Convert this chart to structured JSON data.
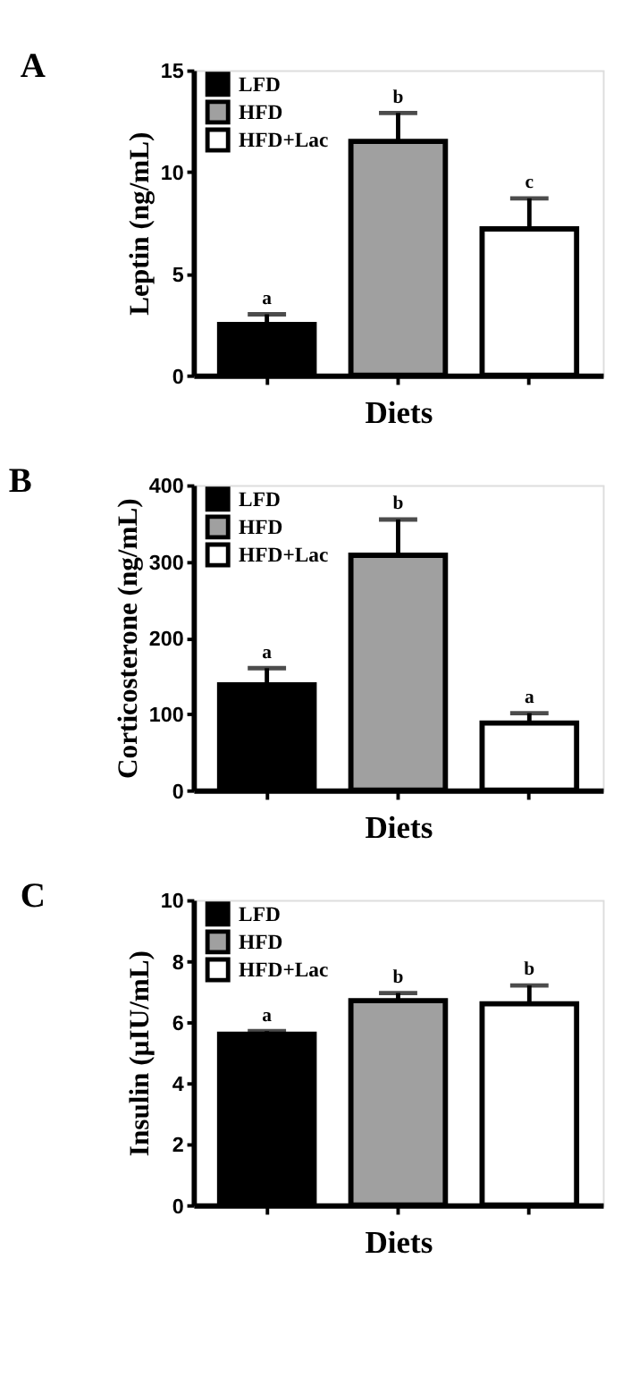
{
  "chart_data": [
    {
      "type": "bar",
      "title": "A",
      "xlabel": "Diets",
      "ylabel": "Leptin (ng/mL)",
      "categories": [
        null,
        null,
        null
      ],
      "ylim": [
        0,
        15
      ],
      "yticks": [
        0,
        5,
        10,
        15
      ],
      "legend": "top left",
      "series": [
        {
          "name": "LFD",
          "color": "#000000",
          "values": [
            2.5,
            null,
            null
          ],
          "errors": [
            [
              2.5,
              3.0
            ],
            null,
            null
          ],
          "value_labels": [
            "a",
            null,
            null
          ]
        },
        {
          "name": "HFD",
          "color": "#a0a0a0",
          "values": [
            null,
            11.5,
            null
          ],
          "errors": [
            null,
            [
              11.5,
              12.9
            ],
            null
          ],
          "value_labels": [
            null,
            "b",
            null
          ]
        },
        {
          "name": "HFD+Lac",
          "color": "#ffffff",
          "values": [
            null,
            null,
            7.2
          ],
          "errors": [
            null,
            null,
            [
              7.2,
              8.7
            ]
          ],
          "value_labels": [
            null,
            null,
            "c"
          ]
        }
      ]
    },
    {
      "type": "bar",
      "title": "B",
      "xlabel": "Diets",
      "ylabel": "Corticosterone (ng/mL)",
      "categories": [
        null,
        null,
        null
      ],
      "ylim": [
        0,
        400
      ],
      "yticks": [
        0,
        100,
        200,
        300,
        400
      ],
      "legend": "top left",
      "series": [
        {
          "name": "LFD",
          "color": "#000000",
          "values": [
            138,
            null,
            null
          ],
          "errors": [
            [
              138,
              160
            ],
            null,
            null
          ],
          "value_labels": [
            "a",
            null,
            null
          ]
        },
        {
          "name": "HFD",
          "color": "#a0a0a0",
          "values": [
            null,
            308,
            null
          ],
          "errors": [
            null,
            [
              308,
              355
            ],
            null
          ],
          "value_labels": [
            null,
            "b",
            null
          ]
        },
        {
          "name": "HFD+Lac",
          "color": "#ffffff",
          "values": [
            null,
            null,
            88
          ],
          "errors": [
            null,
            null,
            [
              88,
              101
            ]
          ],
          "value_labels": [
            null,
            null,
            "a"
          ]
        }
      ]
    },
    {
      "type": "bar",
      "title": "C",
      "xlabel": "Diets",
      "ylabel": "Insulin (µIU/mL)",
      "categories": [
        null,
        null,
        null
      ],
      "ylim": [
        0,
        10
      ],
      "yticks": [
        0,
        2,
        4,
        6,
        8,
        10
      ],
      "legend": "top left",
      "series": [
        {
          "name": "LFD",
          "color": "#000000",
          "values": [
            5.6,
            null,
            null
          ],
          "errors": [
            [
              5.6,
              5.7
            ],
            null,
            null
          ],
          "value_labels": [
            "a",
            null,
            null
          ]
        },
        {
          "name": "HFD",
          "color": "#a0a0a0",
          "values": [
            null,
            6.7,
            null
          ],
          "errors": [
            null,
            [
              6.7,
              6.95
            ],
            null
          ],
          "value_labels": [
            null,
            "b",
            null
          ]
        },
        {
          "name": "HFD+Lac",
          "color": "#ffffff",
          "values": [
            null,
            null,
            6.6
          ],
          "errors": [
            null,
            null,
            [
              6.6,
              7.2
            ]
          ],
          "value_labels": [
            null,
            null,
            "b"
          ]
        }
      ]
    }
  ]
}
